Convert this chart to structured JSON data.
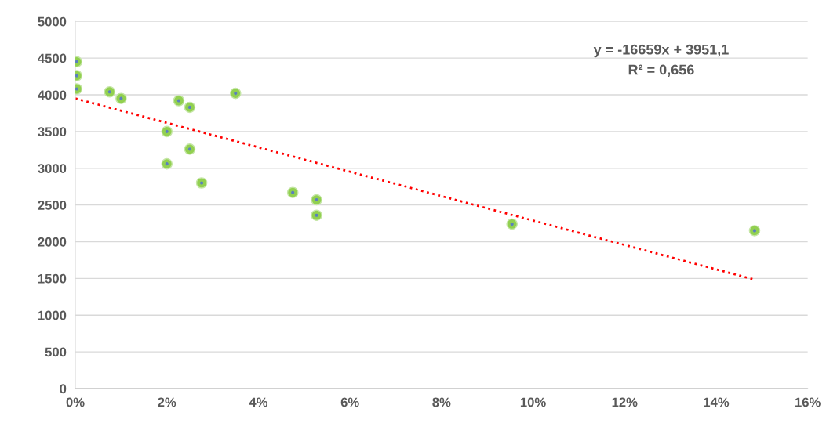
{
  "chart_data": {
    "type": "scatter",
    "series": [
      {
        "color": "#92d050",
        "marker": "circle",
        "x": [
          0.0003,
          0.0003,
          0.0003,
          0.0075,
          0.01,
          0.02,
          0.02,
          0.0226,
          0.025,
          0.025,
          0.0276,
          0.035,
          0.0475,
          0.0527,
          0.0527,
          0.0954,
          0.1484
        ],
        "values": [
          4450,
          4260,
          4080,
          4040,
          3950,
          3500,
          3060,
          3920,
          3830,
          3260,
          2800,
          4020,
          2670,
          2570,
          2360,
          2240,
          2150
        ]
      },
      {
        "type": "line",
        "color": "#ff0000",
        "line_style": "dotted",
        "x": [
          0,
          0.148
        ],
        "values": [
          3950,
          1490
        ]
      }
    ],
    "annotations": [
      "y = -16659x + 3951,1",
      "R² = 0,656"
    ],
    "xlim": [
      0,
      0.16
    ],
    "xticks": [
      {
        "value": 0,
        "label": "0%"
      },
      {
        "value": 0.02,
        "label": "2%"
      },
      {
        "value": 0.04,
        "label": "4%"
      },
      {
        "value": 0.06,
        "label": "6%"
      },
      {
        "value": 0.08,
        "label": "8%"
      },
      {
        "value": 0.1,
        "label": "10%"
      },
      {
        "value": 0.12,
        "label": "12%"
      },
      {
        "value": 0.14,
        "label": "14%"
      },
      {
        "value": 0.16,
        "label": "16%"
      }
    ],
    "ylim": [
      0,
      5000
    ],
    "yticks": [
      0,
      500,
      1000,
      1500,
      2000,
      2500,
      3000,
      3500,
      4000,
      4500,
      5000
    ],
    "grid": "y"
  }
}
